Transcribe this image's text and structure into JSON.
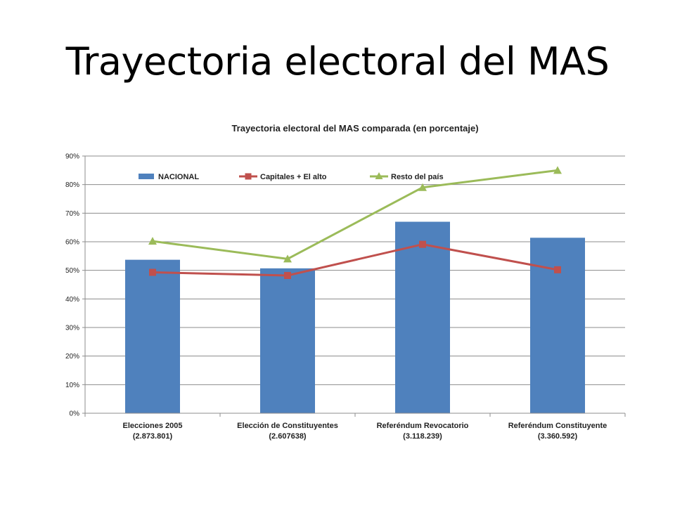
{
  "slide": {
    "title": "Trayectoria electoral del MAS"
  },
  "chart_data": {
    "type": "bar",
    "title": "Trayectoria electoral del MAS comparada (en porcentaje)",
    "xlabel": "",
    "ylabel": "",
    "ylim": [
      0,
      90
    ],
    "y_ticks": [
      0,
      10,
      20,
      30,
      40,
      50,
      60,
      70,
      80,
      90
    ],
    "y_tick_format": "percent",
    "grid": true,
    "legend_position": "top",
    "categories": [
      [
        "Elecciones 2005",
        "(2.873.801)"
      ],
      [
        "Elección de Constituyentes",
        "(2.607638)"
      ],
      [
        "Referéndum Revocatorio",
        "(3.118.239)"
      ],
      [
        "Referéndum Constituyente",
        "(3.360.592)"
      ]
    ],
    "series": [
      {
        "name": "NACIONAL",
        "kind": "bar",
        "color": "#4F81BD",
        "values": [
          53.7,
          50.7,
          67.0,
          61.4
        ]
      },
      {
        "name": "Capitales + El alto",
        "kind": "line",
        "marker": "square",
        "color": "#C0504D",
        "values": [
          49.3,
          48.2,
          59.1,
          50.2
        ]
      },
      {
        "name": "Resto del país",
        "kind": "line",
        "marker": "triangle",
        "color": "#9BBB59",
        "values": [
          60.2,
          54.0,
          79.0,
          85.0
        ]
      }
    ]
  }
}
